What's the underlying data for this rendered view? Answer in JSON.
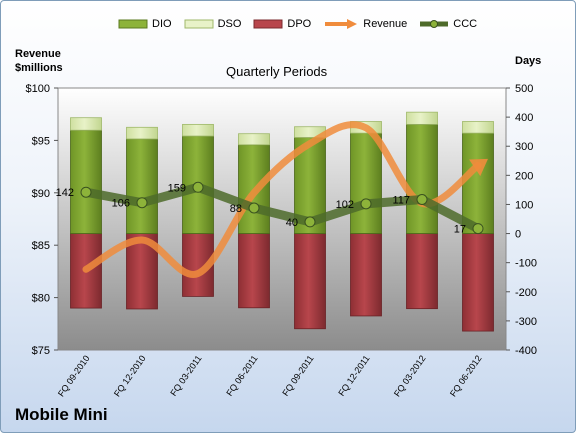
{
  "chart_data": {
    "type": "bar",
    "title": "Quarterly Periods",
    "company": "Mobile Mini",
    "left_axis_label": "Revenue\n$millions",
    "right_axis_label": "Days",
    "categories": [
      "FQ 09-2010",
      "FQ 12-2010",
      "FQ 03-2011",
      "FQ 06-2011",
      "FQ 09-2011",
      "FQ 12-2011",
      "FQ 03-2012",
      "FQ 06-2012"
    ],
    "left_ticks": [
      "$75",
      "$80",
      "$85",
      "$90",
      "$95",
      "$100"
    ],
    "right_ticks": [
      "-400",
      "-300",
      "-200",
      "-100",
      "0",
      "100",
      "200",
      "300",
      "400",
      "500"
    ],
    "y_left_lim": [
      75,
      100
    ],
    "y_right_lim": [
      -400,
      500
    ],
    "series": [
      {
        "name": "DIO",
        "axis": "right",
        "kind": "bar",
        "values": [
          355,
          325,
          335,
          305,
          330,
          345,
          375,
          345
        ]
      },
      {
        "name": "DSO",
        "axis": "right",
        "kind": "bar",
        "values": [
          43,
          40,
          40,
          38,
          37,
          40,
          42,
          40
        ]
      },
      {
        "name": "DPO",
        "axis": "right",
        "kind": "bar",
        "values": [
          -256,
          -259,
          -216,
          -255,
          -327,
          -283,
          -258,
          -335
        ]
      },
      {
        "name": "Revenue",
        "axis": "left",
        "kind": "line",
        "values": [
          82.7,
          85.5,
          82.3,
          90.0,
          94.7,
          96.2,
          89.0,
          92.6
        ]
      },
      {
        "name": "CCC",
        "axis": "right",
        "kind": "line",
        "values": [
          142,
          106,
          159,
          88,
          40,
          102,
          117,
          17
        ]
      }
    ],
    "ccc_labels": [
      "142",
      "106",
      "159",
      "88",
      "40",
      "102",
      "117",
      "17"
    ],
    "colors": {
      "DIO": "#8db33a",
      "DSO": "#e8f2c8",
      "DPO": "#b8464c",
      "Revenue": "#f08c3c",
      "CCC": "#4e6b2a",
      "plot_bg_top": "#ffffff",
      "plot_bg_bottom": "#8c8c8c"
    },
    "legend_position": "top",
    "grid": false
  }
}
